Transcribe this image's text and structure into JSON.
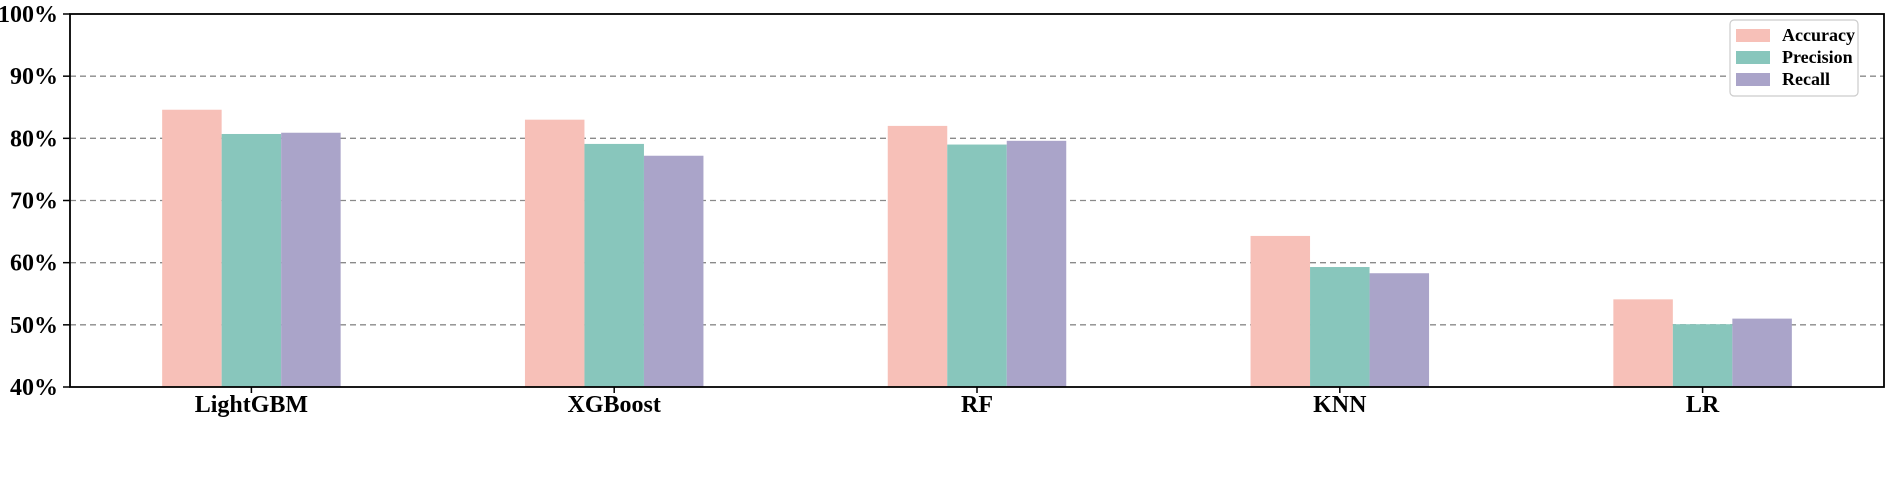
{
  "chart_data": {
    "type": "bar",
    "categories": [
      "LightGBM",
      "XGBoost",
      "RF",
      "KNN",
      "LR"
    ],
    "series": [
      {
        "name": "Accuracy",
        "values": [
          84.6,
          83.0,
          82.0,
          64.3,
          54.1
        ]
      },
      {
        "name": "Precision",
        "values": [
          80.7,
          79.1,
          79.0,
          59.3,
          50.1
        ]
      },
      {
        "name": "Recall",
        "values": [
          80.9,
          77.2,
          79.6,
          58.3,
          51.0
        ]
      }
    ],
    "ylim": [
      40,
      100
    ],
    "yticks": [
      40,
      50,
      60,
      70,
      80,
      90,
      100
    ],
    "ytick_labels": [
      "40%",
      "50%",
      "60%",
      "70%",
      "80%",
      "90%",
      "100%"
    ],
    "grid": "horizontal dashed",
    "legend": "top-right",
    "colors": [
      "#f7c0b8",
      "#88c6bc",
      "#aaa4c9"
    ]
  }
}
